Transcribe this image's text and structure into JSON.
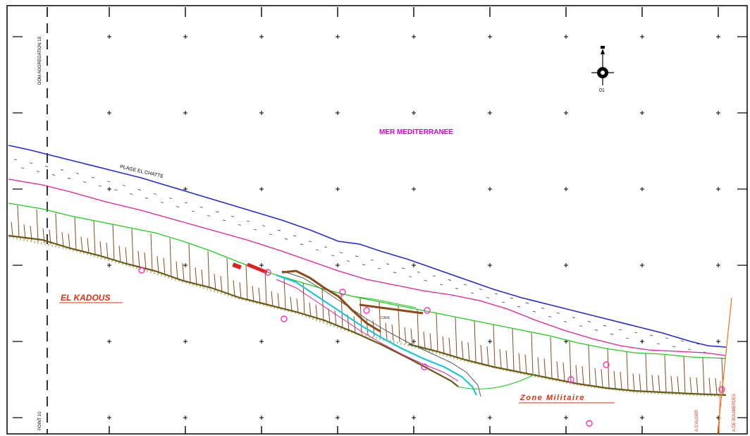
{
  "colors": {
    "frame": "#000000",
    "grid_cross": "#000000",
    "shoreline": "#2a2acc",
    "pink_line": "#e0209a",
    "green_line": "#22cc22",
    "slope": "#8b4a18",
    "slope_base": "#5a7a10",
    "road_cyan": "#1cc6d6",
    "label_magenta": "#e000d0",
    "label_red": "#e03010",
    "boundary_orange": "#f07020",
    "marker_pink": "#ff30c0"
  },
  "labels": {
    "sea": "MER MEDITERRANEE",
    "beach": "PLAGE EL CHATTE",
    "place": "EL KADOUS",
    "zone": "Zone Militaire",
    "north_number": "01",
    "left_vertical_top": "DOM AGGREGATION 15",
    "left_vertical_bottom": "POINT 10",
    "right_vertical_1": "A D'ALGER",
    "right_vertical_2": "A DE BOUMERDES",
    "small_structure": "CAFE"
  },
  "icons": {
    "north_arrow": "north-arrow-icon"
  }
}
